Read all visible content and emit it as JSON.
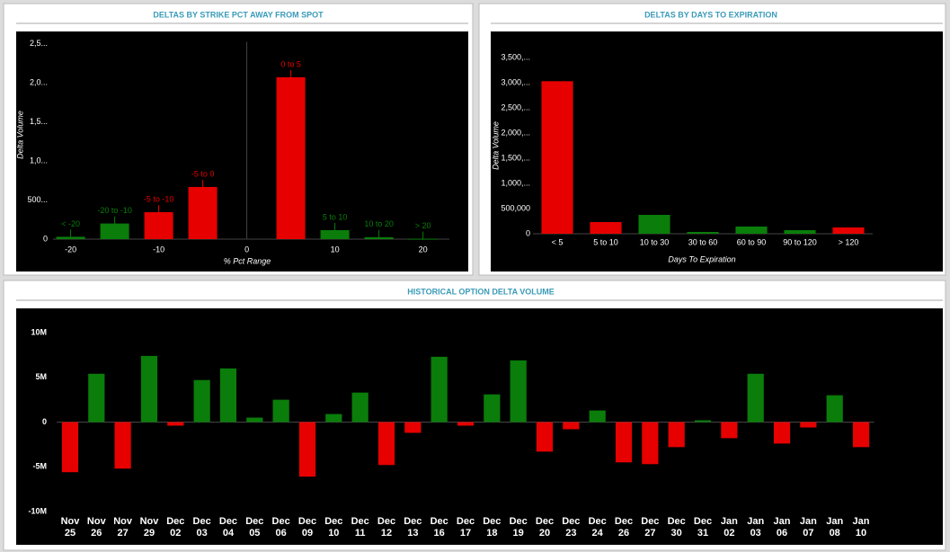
{
  "chart_data": [
    {
      "type": "bar",
      "title": "DELTAS BY STRIKE PCT AWAY FROM SPOT",
      "y_label": "Delta Volume",
      "x_label": "% Pct Range",
      "categories": [
        "< -20",
        "-20 to -10",
        "-5 to -10",
        "-5 to 0",
        "0 to 5",
        "5 to 10",
        "10 to 20",
        "> 20"
      ],
      "x": [
        -20,
        -15,
        -10,
        -5,
        5,
        10,
        15,
        20
      ],
      "values": [
        30000,
        200000,
        345000,
        667000,
        2070000,
        115000,
        25000,
        5000
      ],
      "colors": [
        "#0a7d0a",
        "#0a7d0a",
        "#e60000",
        "#e60000",
        "#e60000",
        "#0a7d0a",
        "#0a7d0a",
        "#0a7d0a"
      ],
      "xlim": [
        -22,
        23
      ],
      "xticks": [
        -20,
        -10,
        0,
        10,
        20
      ],
      "ylim": [
        0,
        2500000
      ],
      "yticks": [
        0,
        {
          "value": 500000,
          "label": "500..."
        },
        {
          "value": 1000000,
          "label": "1,0..."
        },
        {
          "value": 1500000,
          "label": "1,5..."
        },
        {
          "value": 2000000,
          "label": "2,0..."
        },
        {
          "value": 2500000,
          "label": "2,5..."
        }
      ]
    },
    {
      "type": "bar",
      "title": "DELTAS BY DAYS TO EXPIRATION",
      "y_label": "Delta Volume",
      "x_label": "Days To Expiration",
      "categories": [
        "< 5",
        "5 to 10",
        "10 to 30",
        "30 to 60",
        "60 to 90",
        "90 to 120",
        "> 120"
      ],
      "values": [
        3030000,
        232000,
        375000,
        36000,
        143000,
        71000,
        125000
      ],
      "colors": [
        "#e60000",
        "#e60000",
        "#0a7d0a",
        "#0a7d0a",
        "#0a7d0a",
        "#0a7d0a",
        "#e60000"
      ],
      "ylim": [
        0,
        3750000
      ],
      "yticks": [
        0,
        {
          "value": 500000,
          "label": "500,000"
        },
        {
          "value": 1000000,
          "label": "1,000,..."
        },
        {
          "value": 1500000,
          "label": "1,500,..."
        },
        {
          "value": 2000000,
          "label": "2,000,..."
        },
        {
          "value": 2500000,
          "label": "2,500,..."
        },
        {
          "value": 3000000,
          "label": "3,000,..."
        },
        {
          "value": 3500000,
          "label": "3,500,..."
        }
      ]
    },
    {
      "type": "bar",
      "title": "HISTORICAL OPTION DELTA VOLUME",
      "categories": [
        "Nov 25",
        "Nov 26",
        "Nov 27",
        "Nov 29",
        "Dec 02",
        "Dec 03",
        "Dec 04",
        "Dec 05",
        "Dec 06",
        "Dec 09",
        "Dec 10",
        "Dec 11",
        "Dec 12",
        "Dec 13",
        "Dec 16",
        "Dec 17",
        "Dec 18",
        "Dec 19",
        "Dec 20",
        "Dec 23",
        "Dec 24",
        "Dec 26",
        "Dec 27",
        "Dec 30",
        "Dec 31",
        "Jan 02",
        "Jan 03",
        "Jan 06",
        "Jan 07",
        "Jan 08",
        "Jan 10"
      ],
      "values": [
        -5600000,
        5400000,
        -5200000,
        7400000,
        -400000,
        4700000,
        6000000,
        500000,
        2500000,
        -6100000,
        900000,
        3300000,
        -4800000,
        -1200000,
        7300000,
        -400000,
        3100000,
        6900000,
        -3300000,
        -800000,
        1300000,
        -4500000,
        -4700000,
        -2800000,
        200000,
        -1800000,
        5400000,
        -2400000,
        -600000,
        3000000,
        -2800000
      ],
      "positive_color": "#0a7d0a",
      "negative_color": "#e60000",
      "ylim": [
        -10000000,
        10000000
      ],
      "yticks": [
        {
          "value": -10000000,
          "label": "-10M"
        },
        {
          "value": -5000000,
          "label": "-5M"
        },
        0,
        {
          "value": 5000000,
          "label": "5M"
        },
        {
          "value": 10000000,
          "label": "10M"
        }
      ]
    }
  ]
}
